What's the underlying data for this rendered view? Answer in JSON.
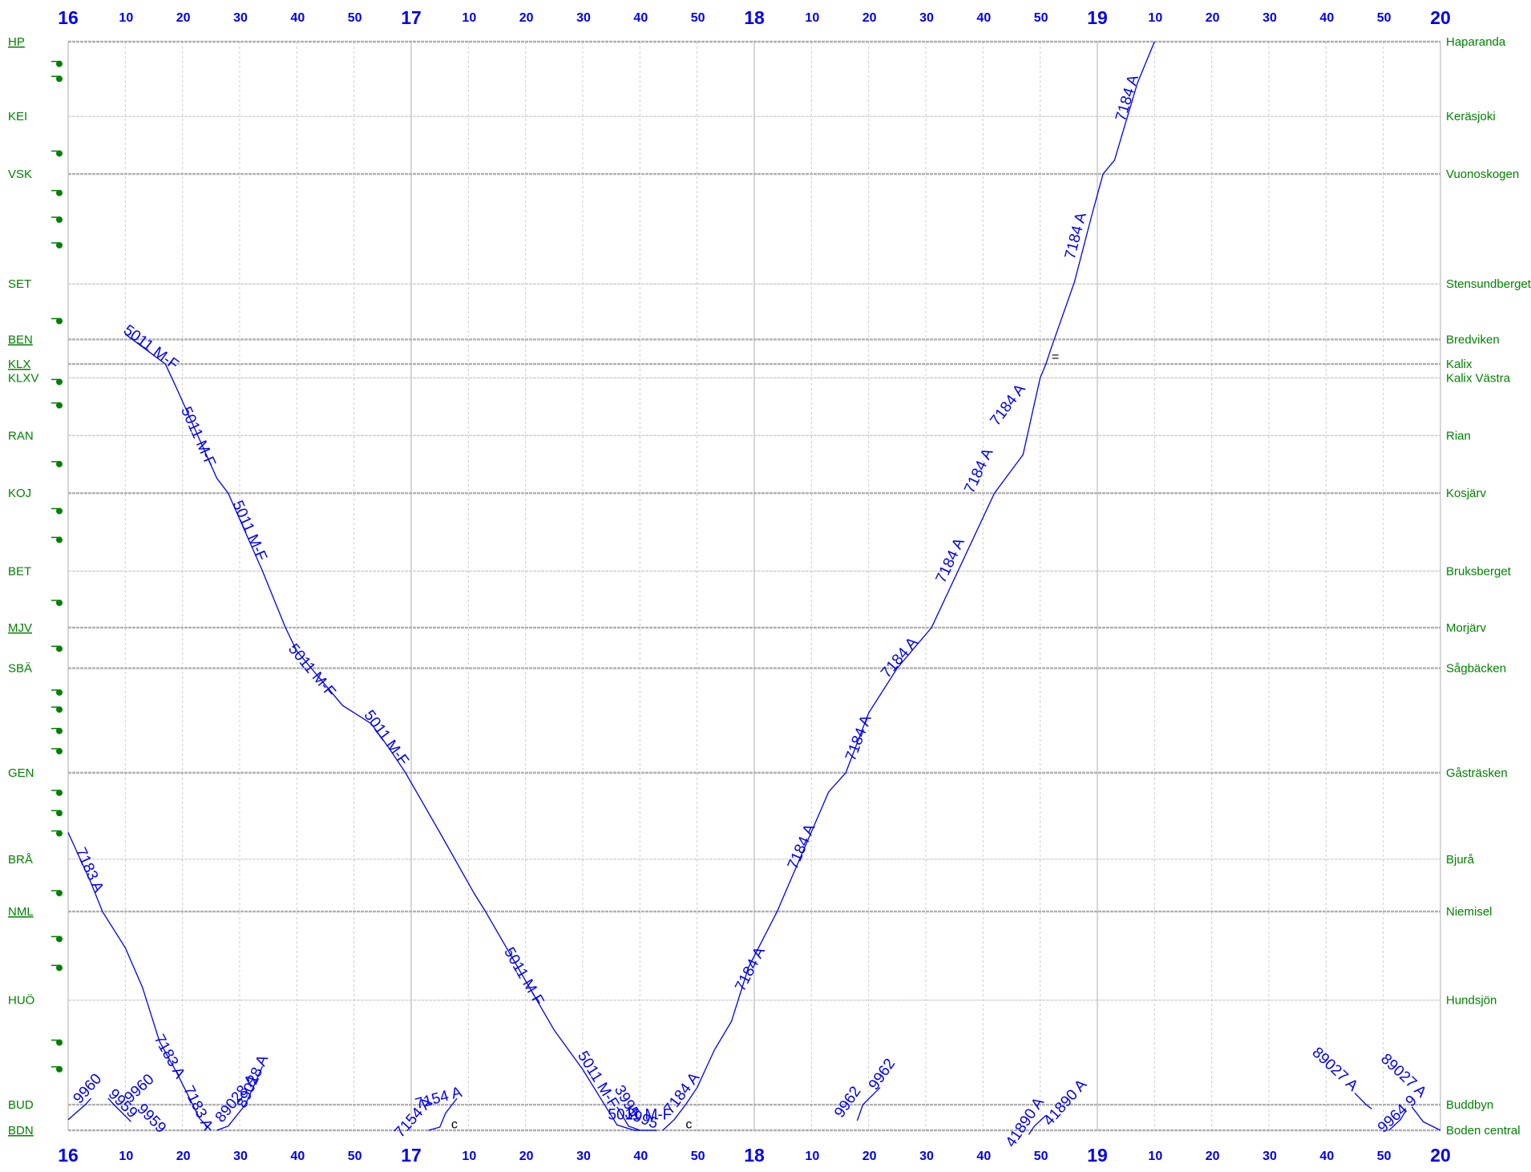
{
  "chart_data": {
    "type": "line",
    "x_unit": "time (hour:minute)",
    "x_range": [
      "16:00",
      "20:00"
    ],
    "hour_labels": [
      "16",
      "17",
      "18",
      "19",
      "20"
    ],
    "minute_labels": [
      "10",
      "20",
      "30",
      "40",
      "50"
    ],
    "stations": [
      {
        "sig": "HP",
        "name": "Haparanda",
        "pos": 0,
        "linked": true,
        "main": true
      },
      {
        "sig": "KEI",
        "name": "Keräsjoki",
        "pos": 7.0,
        "linked": false,
        "main": false
      },
      {
        "sig": "VSK",
        "name": "Vuonoskogen",
        "pos": 12.4,
        "linked": false,
        "main": true
      },
      {
        "sig": "SET",
        "name": "Stensundberget",
        "pos": 22.7,
        "linked": false,
        "main": false
      },
      {
        "sig": "BEN",
        "name": "Bredviken",
        "pos": 27.9,
        "linked": true,
        "main": true
      },
      {
        "sig": "KLX",
        "name": "Kalix",
        "pos": 30.2,
        "linked": true,
        "main": true
      },
      {
        "sig": "KLXV",
        "name": "Kalix Västra",
        "pos": 31.5,
        "linked": false,
        "main": false
      },
      {
        "sig": "RAN",
        "name": "Rian",
        "pos": 36.9,
        "linked": false,
        "main": false
      },
      {
        "sig": "KOJ",
        "name": "Kosjärv",
        "pos": 42.3,
        "linked": false,
        "main": true
      },
      {
        "sig": "BET",
        "name": "Bruksberget",
        "pos": 49.6,
        "linked": false,
        "main": false
      },
      {
        "sig": "MJV",
        "name": "Morjärv",
        "pos": 54.9,
        "linked": true,
        "main": true
      },
      {
        "sig": "SBÄ",
        "name": "Sågbäcken",
        "pos": 58.7,
        "linked": false,
        "main": true
      },
      {
        "sig": "GEN",
        "name": "Gåsträsken",
        "pos": 68.5,
        "linked": false,
        "main": true
      },
      {
        "sig": "BRÅ",
        "name": "Bjurå",
        "pos": 76.6,
        "linked": false,
        "main": false
      },
      {
        "sig": "NML",
        "name": "Niemisel",
        "pos": 81.5,
        "linked": true,
        "main": true
      },
      {
        "sig": "HUÖ",
        "name": "Hundsjön",
        "pos": 89.8,
        "linked": false,
        "main": false
      },
      {
        "sig": "BUD",
        "name": "Buddbyn",
        "pos": 99.6,
        "linked": false,
        "main": true
      },
      {
        "sig": "BDN",
        "name": "Boden central",
        "pos": 102.0,
        "linked": true,
        "main": true
      }
    ],
    "signal_marker_positions": [
      2.0,
      3.4,
      10.4,
      14.1,
      16.6,
      19.0,
      26.1,
      31.8,
      34.0,
      39.5,
      43.9,
      46.6,
      52.5,
      56.8,
      60.9,
      62.5,
      64.5,
      66.4,
      70.3,
      72.2,
      74.1,
      79.7,
      84.0,
      86.7,
      93.7,
      96.2
    ],
    "series": [
      {
        "name": "5011 M-F",
        "points": [
          [
            "16:10",
            27.4
          ],
          [
            "16:17",
            30.2
          ],
          [
            "16:19",
            32.5
          ],
          [
            "16:26",
            40.9
          ],
          [
            "16:28",
            42.3
          ],
          [
            "16:34",
            49.6
          ],
          [
            "16:38",
            54.9
          ],
          [
            "16:40",
            57.1
          ],
          [
            "16:48",
            62.2
          ],
          [
            "16:53",
            63.9
          ],
          [
            "16:56",
            66.1
          ],
          [
            "16:59",
            68.5
          ],
          [
            "17:05",
            74.1
          ],
          [
            "17:11",
            79.8
          ],
          [
            "17:13",
            81.5
          ],
          [
            "17:25",
            92.6
          ],
          [
            "17:30",
            96.3
          ],
          [
            "17:36",
            101.5
          ],
          [
            "17:39",
            102.0
          ],
          [
            "17:43",
            102.0
          ]
        ],
        "labels": [
          {
            "text": "5011 M-F",
            "t": "16:14",
            "p": 29.0
          },
          {
            "text": "5011 M-F",
            "t": "16:22",
            "p": 37.2
          },
          {
            "text": "5011 M-F",
            "t": "16:31",
            "p": 46.0
          },
          {
            "text": "5011 M-F",
            "t": "16:42",
            "p": 59.2
          },
          {
            "text": "5011 M-F",
            "t": "16:55",
            "p": 65.5
          },
          {
            "text": "5011 M-F",
            "t": "17:19",
            "p": 87.8
          },
          {
            "text": "5011 M-F",
            "t": "17:32",
            "p": 97.5
          },
          {
            "text": "5011 M-F",
            "t": "17:40",
            "p": 101.0
          }
        ]
      },
      {
        "name": "7184 A",
        "points": [
          [
            "17:44",
            102.0
          ],
          [
            "17:46",
            101.0
          ],
          [
            "17:48",
            99.6
          ],
          [
            "17:50",
            98.0
          ],
          [
            "17:53",
            94.5
          ],
          [
            "17:56",
            91.8
          ],
          [
            "17:59",
            86.7
          ],
          [
            "18:04",
            81.5
          ],
          [
            "18:06",
            79.0
          ],
          [
            "18:13",
            70.3
          ],
          [
            "18:16",
            68.5
          ],
          [
            "18:20",
            62.9
          ],
          [
            "18:25",
            58.7
          ],
          [
            "18:31",
            54.9
          ],
          [
            "18:42",
            42.3
          ],
          [
            "18:47",
            38.7
          ],
          [
            "18:49",
            33.9
          ],
          [
            "18:50",
            31.5
          ],
          [
            "18:51",
            30.2
          ],
          [
            "18:52",
            28.6
          ],
          [
            "18:56",
            22.5
          ],
          [
            "18:59",
            16.3
          ],
          [
            "19:01",
            12.4
          ],
          [
            "19:03",
            11.1
          ],
          [
            "19:07",
            3.9
          ],
          [
            "19:10",
            0.0
          ]
        ],
        "labels": [
          {
            "text": "7184 A",
            "t": "17:48",
            "p": 98.8
          },
          {
            "text": "7184 A",
            "t": "18:00",
            "p": 87.1
          },
          {
            "text": "7184 A",
            "t": "18:09",
            "p": 75.6
          },
          {
            "text": "7184 A",
            "t": "18:19",
            "p": 65.4
          },
          {
            "text": "7184 A",
            "t": "18:26",
            "p": 58.0
          },
          {
            "text": "7184 A",
            "t": "18:35",
            "p": 48.8
          },
          {
            "text": "7184 A",
            "t": "18:40",
            "p": 40.4
          },
          {
            "text": "7184 A",
            "t": "18:45",
            "p": 34.3
          },
          {
            "text": "7184 A",
            "t": "18:57",
            "p": 18.3
          },
          {
            "text": "7184 A",
            "t": "19:06",
            "p": 5.4
          }
        ]
      },
      {
        "name": "7183 A",
        "points": [
          [
            "16:00",
            74.1
          ],
          [
            "16:04",
            78.8
          ],
          [
            "16:06",
            81.5
          ],
          [
            "16:10",
            84.9
          ],
          [
            "16:13",
            88.6
          ],
          [
            "16:16",
            93.7
          ],
          [
            "16:19",
            96.6
          ],
          [
            "16:23",
            100.9
          ],
          [
            "16:25",
            102.0
          ]
        ],
        "labels": [
          {
            "text": "7183 A",
            "t": "16:03",
            "p": 77.8
          },
          {
            "text": "7183 A",
            "t": "16:17",
            "p": 95.3
          },
          {
            "text": "7183 A",
            "t": "16:22",
            "p": 100.1
          }
        ]
      },
      {
        "name": "89028 A",
        "points": [
          [
            "16:26",
            102.0
          ],
          [
            "16:28",
            101.6
          ],
          [
            "16:31",
            99.6
          ],
          [
            "16:34",
            96.0
          ]
        ],
        "labels": [
          {
            "text": "89028 A",
            "t": "16:30",
            "p": 99.3
          },
          {
            "text": "89028 A",
            "t": "16:33",
            "p": 97.6
          }
        ]
      },
      {
        "name": "9960",
        "points": [
          [
            "16:00",
            101.0
          ],
          [
            "16:03",
            99.6
          ],
          [
            "16:04",
            99.0
          ]
        ],
        "labels": [
          {
            "text": "9960",
            "t": "16:04",
            "p": 98.4
          },
          {
            "text": "9960",
            "t": "16:13",
            "p": 98.4
          }
        ]
      },
      {
        "name": "9959",
        "points": [
          [
            "16:07",
            99.0
          ],
          [
            "16:08",
            99.6
          ],
          [
            "16:11",
            101.2
          ]
        ],
        "labels": [
          {
            "text": "9959",
            "t": "16:09",
            "p": 99.8
          },
          {
            "text": "9959",
            "t": "16:14",
            "p": 101.2
          }
        ]
      },
      {
        "name": "7154 A",
        "points": [
          [
            "17:03",
            102.0
          ],
          [
            "17:05",
            101.7
          ],
          [
            "17:06",
            100.4
          ],
          [
            "17:08",
            99.0
          ]
        ],
        "labels": [
          {
            "text": "7154 A",
            "t": "17:01",
            "p": 101.1
          },
          {
            "text": "7154 A",
            "t": "17:05",
            "p": 99.4
          }
        ]
      },
      {
        "name": "3995",
        "points": [
          [
            "17:36",
            99.8
          ],
          [
            "17:38",
            101.6
          ],
          [
            "17:40",
            102.0
          ]
        ],
        "labels": [
          {
            "text": "3995",
            "t": "17:37",
            "p": 99.5
          },
          {
            "text": "3995",
            "t": "17:40",
            "p": 101.3
          }
        ]
      },
      {
        "name": "9962",
        "points": [
          [
            "18:18",
            101.1
          ],
          [
            "18:19",
            99.6
          ],
          [
            "18:22",
            98.0
          ]
        ],
        "labels": [
          {
            "text": "9962",
            "t": "18:17",
            "p": 99.6
          },
          {
            "text": "9962",
            "t": "18:23",
            "p": 97.0
          }
        ]
      },
      {
        "name": "41890 A",
        "points": [
          [
            "18:48",
            102.4
          ],
          [
            "18:49",
            101.6
          ],
          [
            "18:51",
            100.6
          ]
        ],
        "labels": [
          {
            "text": "41890 A",
            "t": "18:48",
            "p": 101.5
          },
          {
            "text": "41890 A",
            "t": "18:55",
            "p": 99.7
          }
        ]
      },
      {
        "name": "89027 A",
        "points": [
          [
            "19:45",
            98.5
          ],
          [
            "19:47",
            99.6
          ],
          [
            "19:48",
            100.0
          ]
        ],
        "labels": [
          {
            "text": "89027 A",
            "t": "19:41",
            "p": 96.6
          },
          {
            "text": "89027 A",
            "t": "19:53",
            "p": 97.2
          }
        ]
      },
      {
        "name": "9964 9",
        "points": [
          [
            "19:51",
            102.0
          ],
          [
            "19:53",
            101.0
          ],
          [
            "19:54",
            100.1
          ]
        ],
        "labels": [
          {
            "text": "9964 9",
            "t": "19:53",
            "p": 100.8
          }
        ]
      },
      {
        "name": "",
        "points": [
          [
            "19:55",
            99.8
          ],
          [
            "19:57",
            101.2
          ],
          [
            "20:00",
            102.0
          ]
        ],
        "labels": []
      }
    ],
    "notes": [
      {
        "text": "c",
        "t": "17:07",
        "p": 101.8
      },
      {
        "text": "c",
        "t": "17:48",
        "p": 101.8
      },
      {
        "text": "=",
        "t": "18:52",
        "p": 29.9
      }
    ],
    "grid": true,
    "line_color": "#0000ee",
    "station_color": "#008000"
  }
}
